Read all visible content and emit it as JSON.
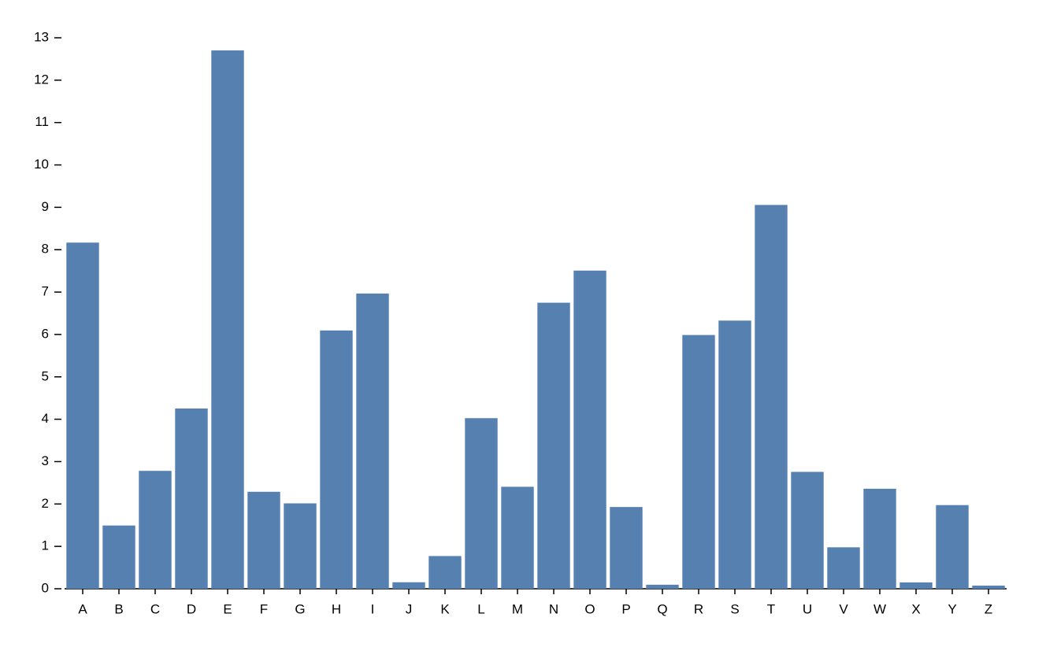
{
  "chart_data": {
    "type": "bar",
    "categories": [
      "A",
      "B",
      "C",
      "D",
      "E",
      "F",
      "G",
      "H",
      "I",
      "J",
      "K",
      "L",
      "M",
      "N",
      "O",
      "P",
      "Q",
      "R",
      "S",
      "T",
      "U",
      "V",
      "W",
      "X",
      "Y",
      "Z"
    ],
    "values": [
      8.167,
      1.492,
      2.782,
      4.253,
      12.702,
      2.288,
      2.015,
      6.094,
      6.966,
      0.153,
      0.772,
      4.025,
      2.406,
      6.749,
      7.507,
      1.929,
      0.095,
      5.987,
      6.327,
      9.056,
      2.758,
      0.978,
      2.36,
      0.15,
      1.974,
      0.074
    ],
    "color": "#5580b0",
    "ylim": [
      0,
      13
    ],
    "yticks": [
      0,
      1,
      2,
      3,
      4,
      5,
      6,
      7,
      8,
      9,
      10,
      11,
      12,
      13
    ]
  }
}
